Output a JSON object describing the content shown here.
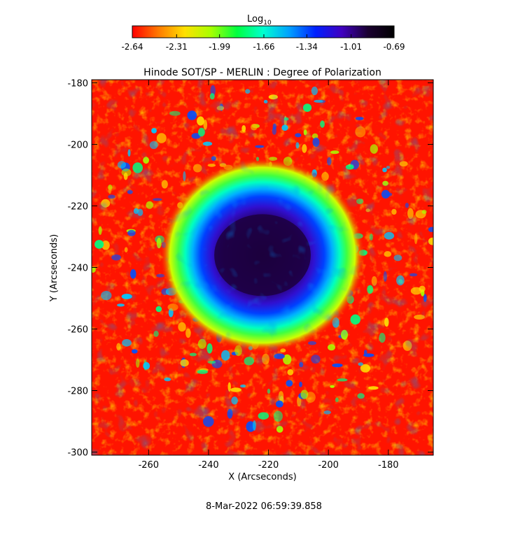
{
  "colorbar": {
    "label_main": "Log",
    "label_sub": "10",
    "ticks": [
      "-2.64",
      "-2.31",
      "-1.99",
      "-1.66",
      "-1.34",
      "-1.01",
      "-0.69"
    ],
    "range": [
      -2.64,
      -0.69
    ],
    "colors": [
      "#ff0000",
      "#ff7a00",
      "#ffe000",
      "#a8ff00",
      "#00ff40",
      "#00ffd0",
      "#00a0ff",
      "#0020ff",
      "#4000c0",
      "#1a0030",
      "#000000"
    ]
  },
  "chart_data": {
    "type": "heatmap",
    "title": "Hinode SOT/SP - MERLIN : Degree of Polarization",
    "xlabel": "X (Arcseconds)",
    "ylabel": "Y (Arcseconds)",
    "xlim": [
      -279,
      -165
    ],
    "ylim": [
      -301,
      -179
    ],
    "x_ticks": [
      "-260",
      "-240",
      "-220",
      "-200",
      "-180"
    ],
    "y_ticks": [
      "-180",
      "-200",
      "-220",
      "-240",
      "-260",
      "-280",
      "-300"
    ],
    "x_tick_values": [
      -260,
      -240,
      -220,
      -200,
      -180
    ],
    "y_tick_values": [
      -180,
      -200,
      -220,
      -240,
      -260,
      -280,
      -300
    ],
    "colorbar_scale": "log10",
    "features": {
      "sunspot_umbra_center": [
        -222,
        -236
      ],
      "umbra_radius_arcsec": 14,
      "penumbra_radius_arcsec": 26,
      "ring_radius_arcsec": 44
    }
  },
  "footer": {
    "timestamp": "8-Mar-2022 06:59:39.858"
  }
}
